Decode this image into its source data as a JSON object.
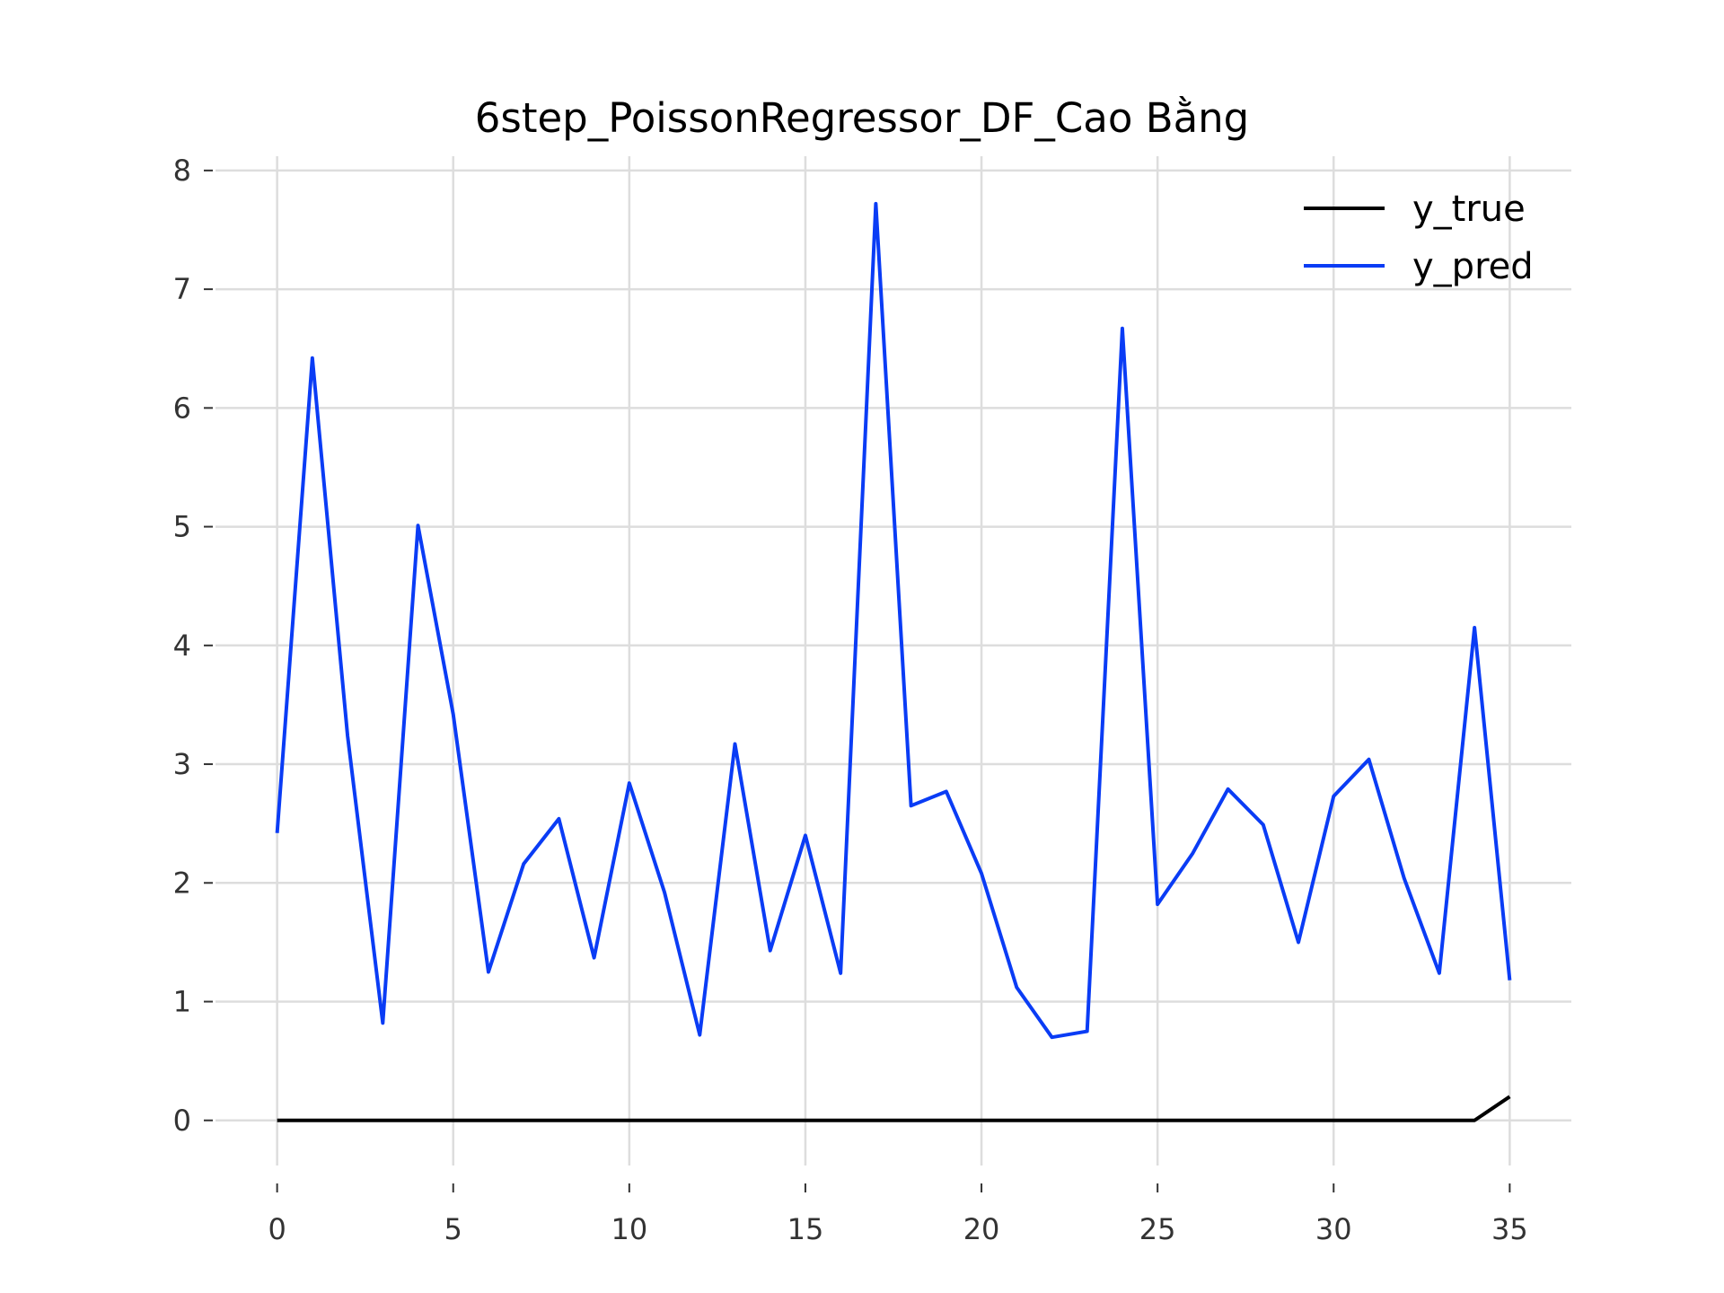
{
  "chart_data": {
    "type": "line",
    "title": "6step_PoissonRegressor_DF_Cao Bằng",
    "xlabel": "",
    "ylabel": "",
    "xlim": [
      -1.75,
      36.75
    ],
    "ylim": [
      -0.38,
      8.12
    ],
    "xticks": [
      0,
      5,
      10,
      15,
      20,
      25,
      30,
      35
    ],
    "yticks": [
      0,
      1,
      2,
      3,
      4,
      5,
      6,
      7,
      8
    ],
    "grid": true,
    "legend_position": "top-right",
    "x": [
      0,
      1,
      2,
      3,
      4,
      5,
      6,
      7,
      8,
      9,
      10,
      11,
      12,
      13,
      14,
      15,
      16,
      17,
      18,
      19,
      20,
      21,
      22,
      23,
      24,
      25,
      26,
      27,
      28,
      29,
      30,
      31,
      32,
      33,
      34,
      35
    ],
    "series": [
      {
        "name": "y_true",
        "color": "#000000",
        "values": [
          0,
          0,
          0,
          0,
          0,
          0,
          0,
          0,
          0,
          0,
          0,
          0,
          0,
          0,
          0,
          0,
          0,
          0,
          0,
          0,
          0,
          0,
          0,
          0,
          0,
          0,
          0,
          0,
          0,
          0,
          0,
          0,
          0,
          0,
          0,
          0.2
        ]
      },
      {
        "name": "y_pred",
        "color": "#0a3cf5",
        "values": [
          2.42,
          6.42,
          3.24,
          0.82,
          5.01,
          3.42,
          1.25,
          2.16,
          2.54,
          1.37,
          2.84,
          1.92,
          0.72,
          3.17,
          1.43,
          2.4,
          1.24,
          7.72,
          2.65,
          2.77,
          2.08,
          1.12,
          0.7,
          0.75,
          6.67,
          1.82,
          2.25,
          2.79,
          2.49,
          1.5,
          2.73,
          3.04,
          2.04,
          1.24,
          4.15,
          1.18
        ]
      }
    ]
  }
}
